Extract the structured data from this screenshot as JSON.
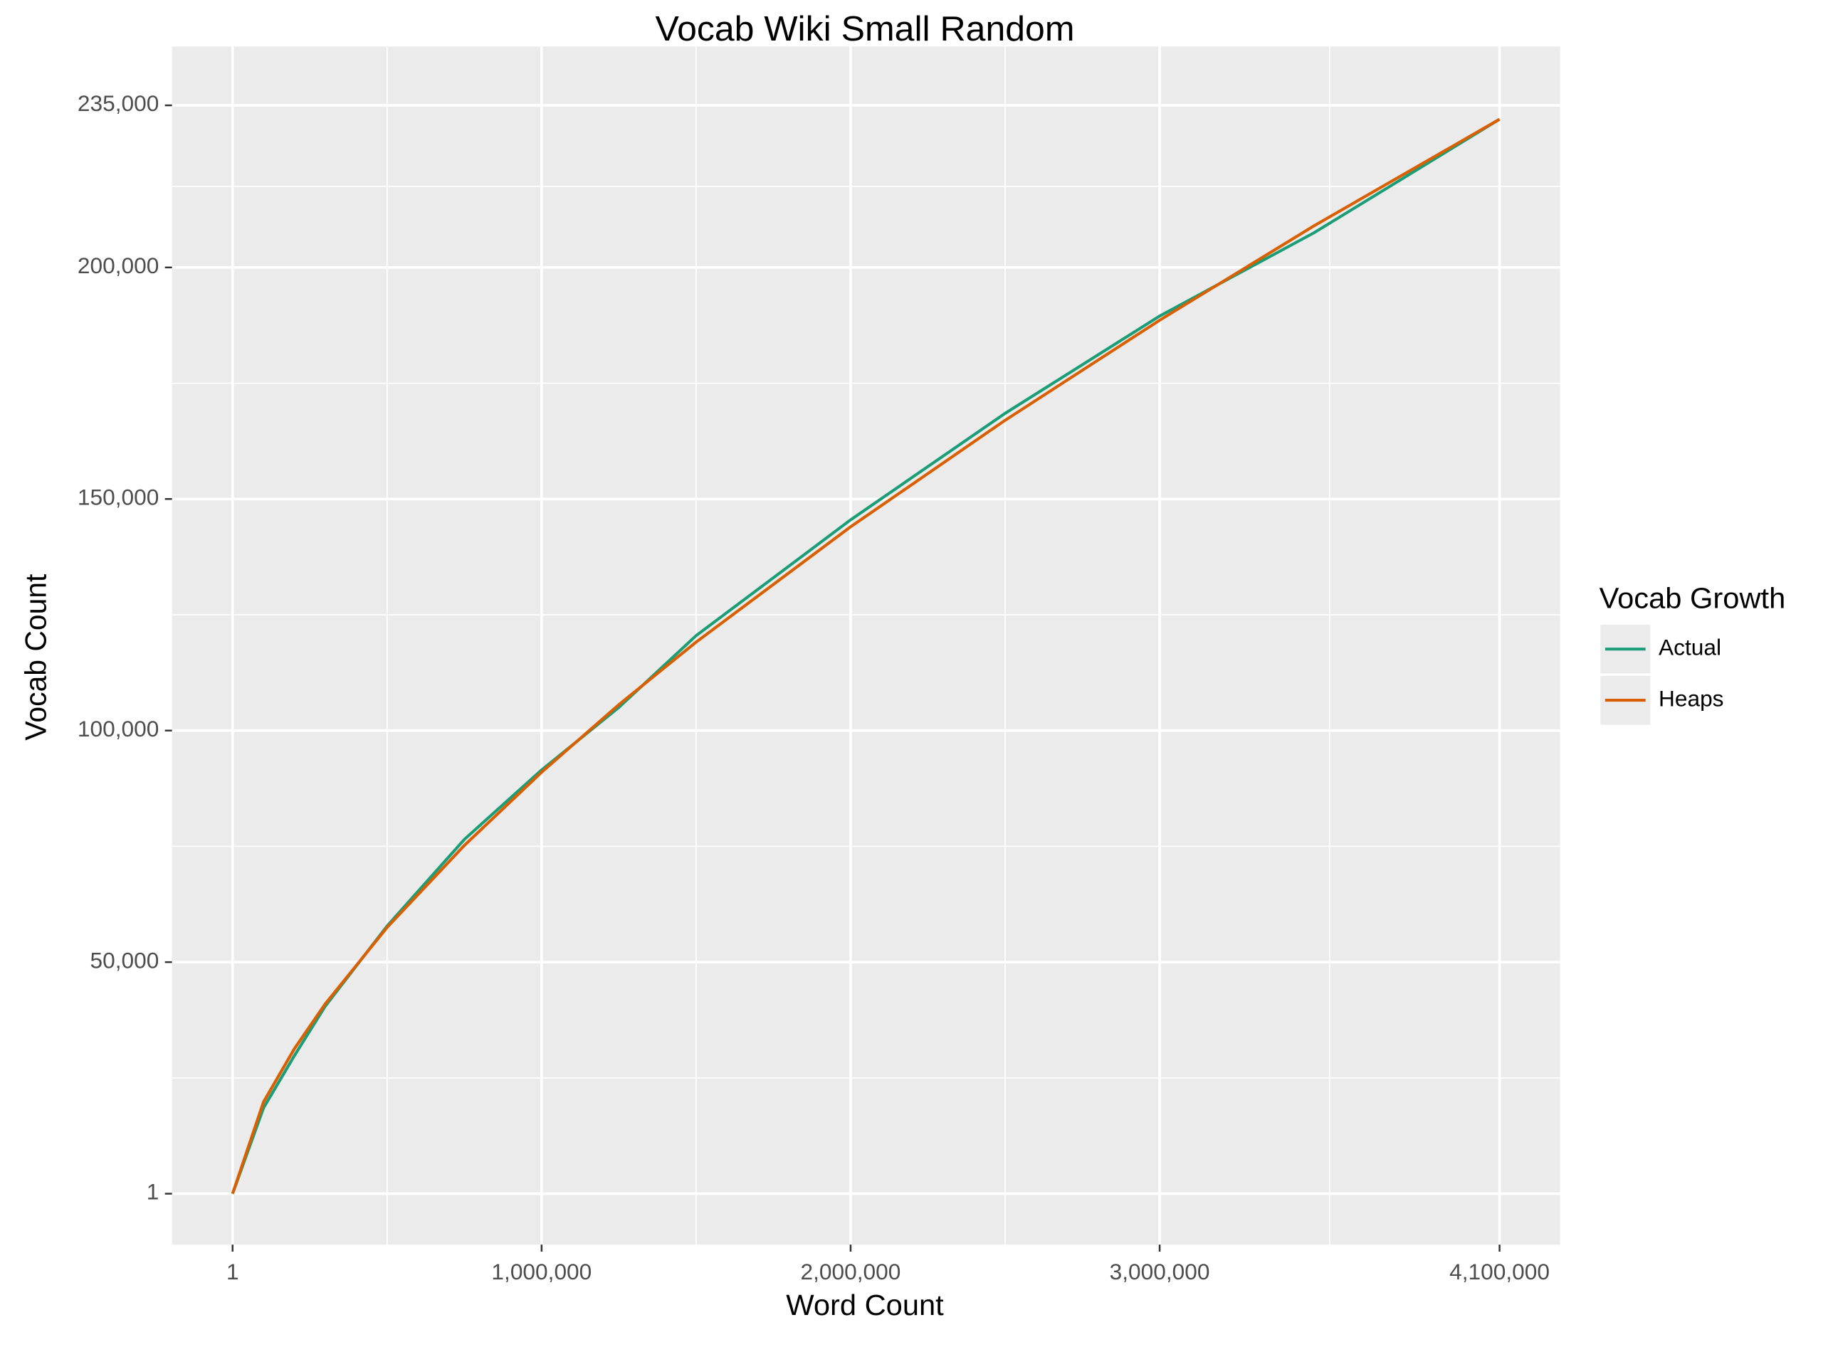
{
  "chart_data": {
    "type": "line",
    "title": "Vocab Wiki Small Random",
    "x_label": "Word Count",
    "y_label": "Vocab Count",
    "legend_title": "Vocab Growth",
    "legend": "right",
    "grid": true,
    "x": [
      1,
      100000,
      200000,
      300000,
      500000,
      750000,
      1000000,
      1250000,
      1500000,
      2000000,
      2500000,
      3000000,
      3500000,
      4100000
    ],
    "series": [
      {
        "name": "Actual",
        "color": "#1b9e77",
        "values": [
          1,
          18500,
          29800,
          40500,
          57800,
          76500,
          91500,
          105000,
          120500,
          145500,
          168500,
          189500,
          207500,
          232000
        ]
      },
      {
        "name": "Heaps",
        "color": "#d95f02",
        "values": [
          1,
          19800,
          31300,
          41000,
          57500,
          75200,
          91000,
          105600,
          119100,
          144000,
          167000,
          188600,
          209000,
          232000
        ]
      }
    ],
    "xlim": [
      -196000,
      4296000
    ],
    "ylim": [
      -11000,
      247700
    ],
    "xticks": [
      1,
      {
        "value": 1000000,
        "label": "1,000,000"
      },
      {
        "value": 2000000,
        "label": "2,000,000"
      },
      {
        "value": 3000000,
        "label": "3,000,000"
      },
      {
        "value": 4100000,
        "label": "4,100,000"
      }
    ],
    "yticks": [
      1,
      {
        "value": 50000,
        "label": "50,000"
      },
      {
        "value": 100000,
        "label": "100,000"
      },
      {
        "value": 150000,
        "label": "150,000"
      },
      {
        "value": 200000,
        "label": "200,000"
      },
      {
        "value": 235000,
        "label": "235,000"
      }
    ]
  }
}
